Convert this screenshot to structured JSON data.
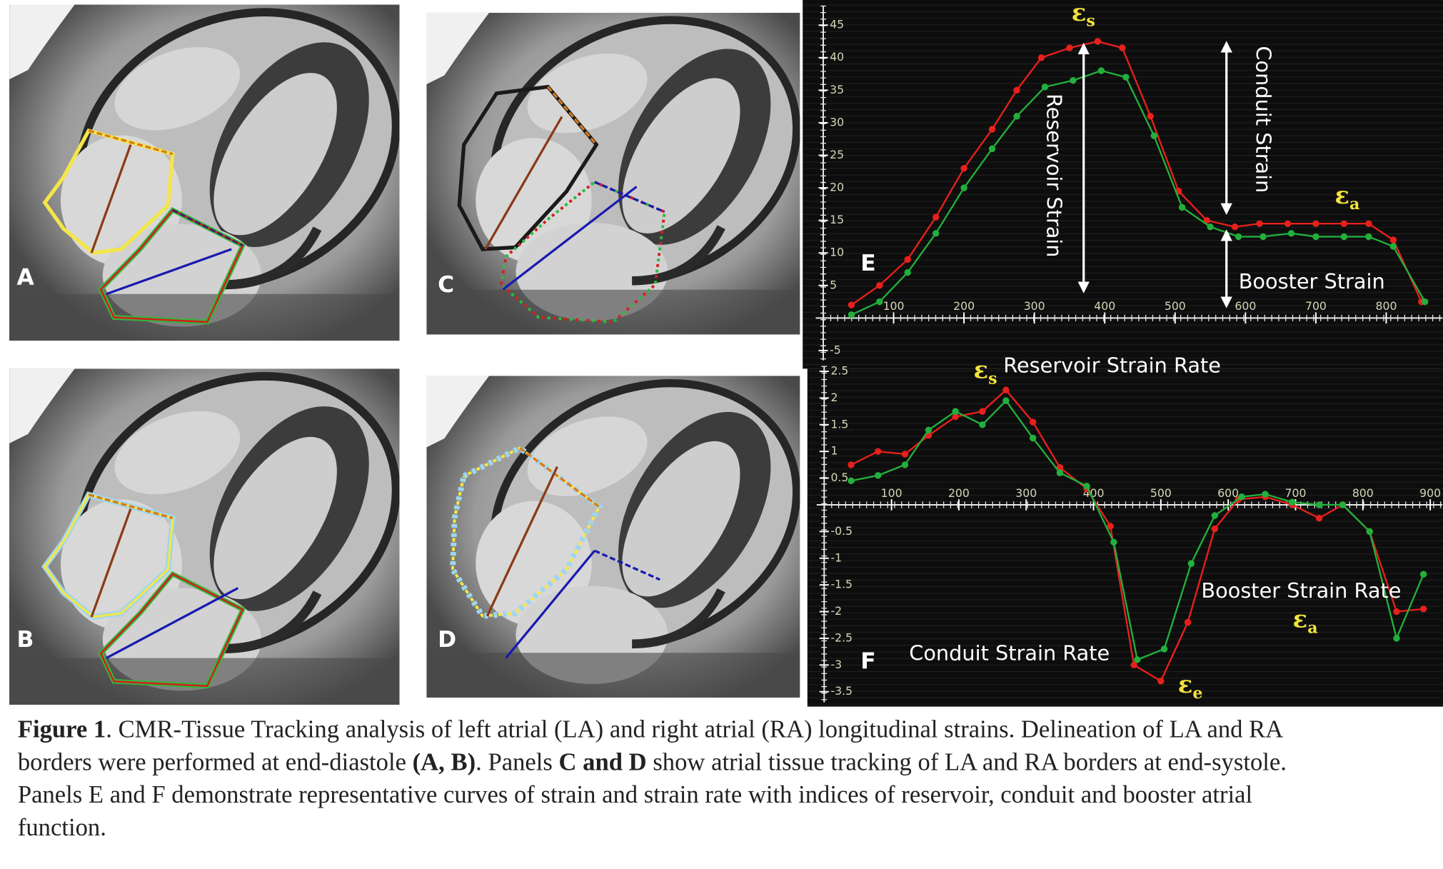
{
  "panels": [
    "A",
    "C",
    "B",
    "D"
  ],
  "chart_data": [
    {
      "type": "line",
      "label": "E",
      "xlim": [
        0,
        880
      ],
      "xticks": [
        100,
        200,
        300,
        400,
        500,
        600,
        700,
        800
      ],
      "ylim": [
        -6.5,
        48
      ],
      "yticks": [
        -5,
        5,
        10,
        15,
        20,
        25,
        30,
        35,
        40,
        45
      ],
      "series": [
        {
          "color": "#e8201c",
          "x": [
            40,
            80,
            120,
            160,
            200,
            240,
            275,
            310,
            350,
            390,
            425,
            465,
            505,
            545,
            585,
            620,
            660,
            700,
            740,
            775,
            810,
            850
          ],
          "values": [
            2,
            5,
            9,
            15.5,
            23,
            29,
            35,
            40,
            41.5,
            42.5,
            41.5,
            31,
            19.5,
            15,
            14,
            14.5,
            14.5,
            14.5,
            14.5,
            14.5,
            12,
            2.5
          ]
        },
        {
          "color": "#22b03c",
          "x": [
            40,
            80,
            120,
            160,
            200,
            240,
            275,
            315,
            355,
            395,
            430,
            470,
            510,
            550,
            590,
            625,
            665,
            700,
            740,
            775,
            810,
            855
          ],
          "values": [
            0.5,
            2.5,
            7,
            13,
            20,
            26,
            31,
            35.5,
            36.5,
            38,
            37,
            28,
            17,
            14,
            12.5,
            12.5,
            13,
            12.5,
            12.5,
            12.5,
            11,
            2.5
          ]
        }
      ],
      "annotations": [
        {
          "text": "Reservoir Strain"
        },
        {
          "text": "Conduit  Strain"
        },
        {
          "text": "Booster Strain"
        },
        {
          "symbol": "ε",
          "sub": "s"
        },
        {
          "symbol": "ε",
          "sub": "a"
        }
      ]
    },
    {
      "type": "line",
      "label": "F",
      "xlim": [
        0,
        918
      ],
      "xticks": [
        100,
        200,
        300,
        400,
        500,
        600,
        700,
        800,
        900
      ],
      "ylim": [
        -3.7,
        2.6
      ],
      "yticks": [
        2.5,
        2,
        1.5,
        1,
        0.5,
        -0.5,
        -1,
        -1.5,
        -2,
        -2.5,
        -3,
        -3.5
      ],
      "series": [
        {
          "color": "#e8201c",
          "x": [
            40,
            80,
            120,
            155,
            195,
            235,
            270,
            310,
            350,
            390,
            425,
            460,
            500,
            540,
            580,
            615,
            655,
            695,
            735,
            770,
            810,
            850,
            890
          ],
          "values": [
            0.75,
            1,
            0.95,
            1.3,
            1.65,
            1.75,
            2.15,
            1.55,
            0.7,
            0.3,
            -0.4,
            -3,
            -3.3,
            -2.2,
            -0.45,
            0.1,
            0.15,
            0,
            -0.25,
            0,
            -0.5,
            -2,
            -1.95
          ]
        },
        {
          "color": "#22b03c",
          "x": [
            40,
            80,
            120,
            155,
            195,
            235,
            270,
            310,
            350,
            390,
            430,
            465,
            505,
            545,
            580,
            620,
            655,
            695,
            735,
            770,
            810,
            850,
            890
          ],
          "values": [
            0.45,
            0.55,
            0.75,
            1.4,
            1.75,
            1.5,
            1.95,
            1.25,
            0.6,
            0.35,
            -0.7,
            -2.9,
            -2.7,
            -1.1,
            -0.2,
            0.15,
            0.2,
            0.05,
            0,
            0,
            -0.5,
            -2.5,
            -1.3
          ]
        }
      ],
      "annotations": [
        {
          "text": "Reservoir Strain Rate"
        },
        {
          "text": "Booster Strain Rate"
        },
        {
          "text": "Conduit Strain Rate"
        },
        {
          "symbol": "ε",
          "sub": "s"
        },
        {
          "symbol": "ε",
          "sub": "a"
        },
        {
          "symbol": "ε",
          "sub": "e"
        }
      ]
    }
  ],
  "caption": {
    "lines": [
      [
        {
          "text": "Figure 1",
          "bold": true
        },
        {
          "text": ". CMR-Tissue Tracking analysis of left atrial (LA) and right atrial (RA)  longitudinal strains. Delineation of LA and RA",
          "bold": false
        }
      ],
      [
        {
          "text": "borders were performed at end-diastole ",
          "bold": false
        },
        {
          "text": "(A, B)",
          "bold": true
        },
        {
          "text": ". Panels ",
          "bold": false
        },
        {
          "text": "C and D",
          "bold": true
        },
        {
          "text": " show atrial tissue tracking of LA and RA borders at end-systole.",
          "bold": false
        }
      ],
      [
        {
          "text": "Panels E and F demonstrate representative curves of strain and strain rate with indices of reservoir, conduit and booster atrial",
          "bold": false
        }
      ],
      [
        {
          "text": "function.",
          "bold": false
        }
      ]
    ]
  }
}
